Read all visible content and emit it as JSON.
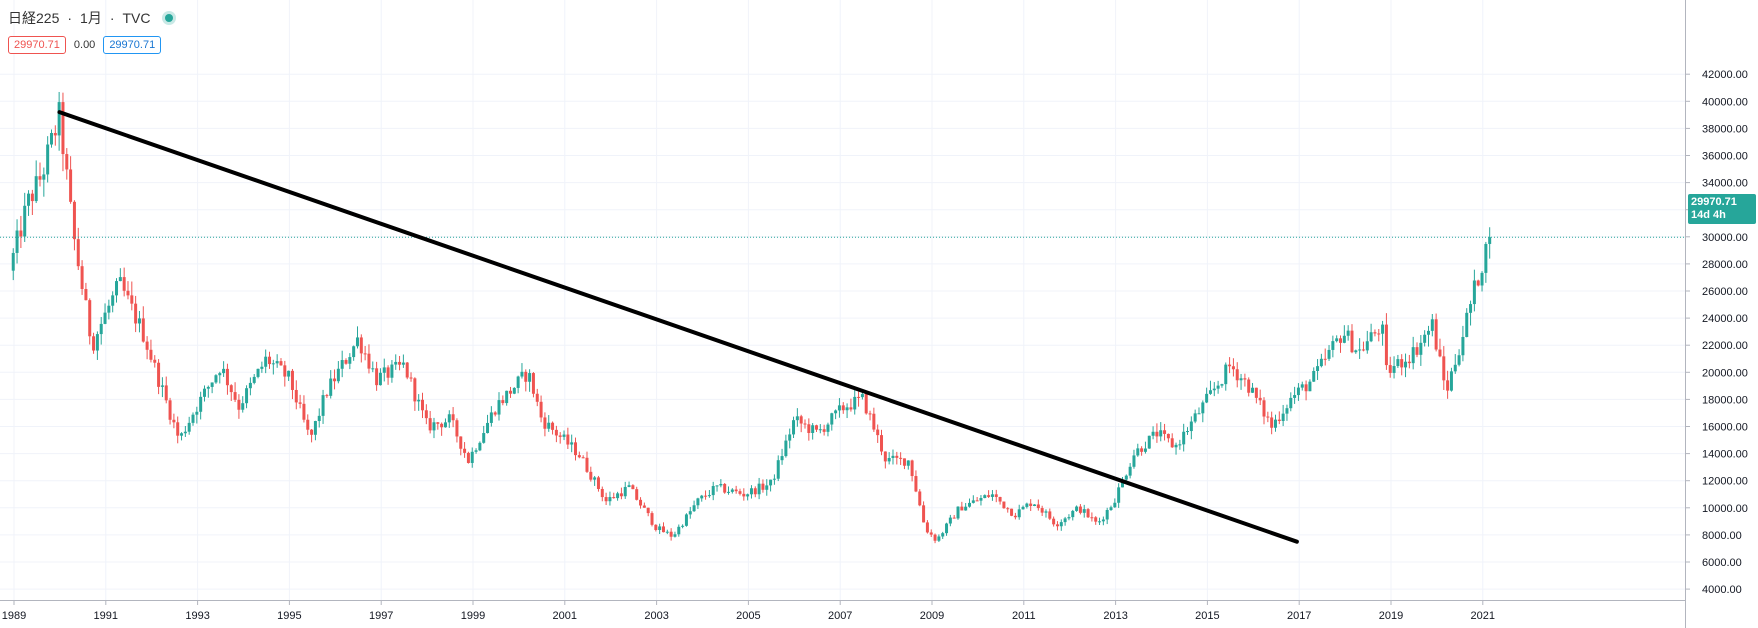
{
  "header": {
    "symbol": "日経225",
    "sep1": "·",
    "interval": "1月",
    "sep2": "·",
    "source": "TVC"
  },
  "ohlc": {
    "left_value": "29970.71",
    "change": "0.00",
    "right_value": "29970.71"
  },
  "price_tag": {
    "price": "29970.71",
    "countdown": "14d 4h"
  },
  "colors": {
    "up": "#26a69a",
    "down": "#ef5350",
    "trendline": "#000000",
    "grid": "#eeeeee"
  },
  "chart_data": {
    "type": "candlestick",
    "ylim": [
      4000,
      42000
    ],
    "y_ticks": [
      "4000.00",
      "6000.00",
      "8000.00",
      "10000.00",
      "12000.00",
      "14000.00",
      "16000.00",
      "18000.00",
      "20000.00",
      "22000.00",
      "24000.00",
      "26000.00",
      "28000.00",
      "30000.00",
      "32000.00",
      "34000.00",
      "36000.00",
      "38000.00",
      "40000.00",
      "42000.00"
    ],
    "x_ticks": [
      "1989",
      "1991",
      "1993",
      "1995",
      "1997",
      "1999",
      "2001",
      "2003",
      "2005",
      "2007",
      "2009",
      "2011",
      "2013",
      "2015",
      "2017",
      "2019",
      "2021"
    ],
    "last_price": 29970.71,
    "series_anchor_closes": [
      [
        1988.9,
        27500
      ],
      [
        1989.3,
        32500
      ],
      [
        1989.6,
        34500
      ],
      [
        1989.99,
        38915
      ],
      [
        1990.3,
        30000
      ],
      [
        1990.7,
        22000
      ],
      [
        1990.95,
        24000
      ],
      [
        1991.3,
        26500
      ],
      [
        1991.8,
        23000
      ],
      [
        1992.6,
        15000
      ],
      [
        1992.9,
        17000
      ],
      [
        1993.5,
        20500
      ],
      [
        1993.9,
        17500
      ],
      [
        1994.5,
        21000
      ],
      [
        1995.0,
        19500
      ],
      [
        1995.45,
        15000
      ],
      [
        1995.8,
        18500
      ],
      [
        1996.5,
        22500
      ],
      [
        1996.9,
        19500
      ],
      [
        1997.5,
        20500
      ],
      [
        1998.0,
        16000
      ],
      [
        1998.5,
        16500
      ],
      [
        1998.9,
        13500
      ],
      [
        1999.5,
        17500
      ],
      [
        2000.2,
        20000
      ],
      [
        2000.5,
        16500
      ],
      [
        2001.3,
        14000
      ],
      [
        2001.9,
        10500
      ],
      [
        2002.4,
        11500
      ],
      [
        2003.0,
        8500
      ],
      [
        2003.35,
        7900
      ],
      [
        2003.9,
        10500
      ],
      [
        2004.3,
        11500
      ],
      [
        2004.9,
        11000
      ],
      [
        2005.5,
        11800
      ],
      [
        2006.0,
        16500
      ],
      [
        2006.5,
        15500
      ],
      [
        2007.1,
        17500
      ],
      [
        2007.5,
        18000
      ],
      [
        2008.0,
        13500
      ],
      [
        2008.5,
        13500
      ],
      [
        2008.85,
        8500
      ],
      [
        2009.1,
        7600
      ],
      [
        2009.6,
        10000
      ],
      [
        2010.3,
        11000
      ],
      [
        2010.8,
        9500
      ],
      [
        2011.2,
        10500
      ],
      [
        2011.7,
        8800
      ],
      [
        2012.2,
        10000
      ],
      [
        2012.6,
        8800
      ],
      [
        2012.95,
        10400
      ],
      [
        2013.4,
        14000
      ],
      [
        2013.9,
        15500
      ],
      [
        2014.3,
        14500
      ],
      [
        2014.9,
        17500
      ],
      [
        2015.5,
        20500
      ],
      [
        2015.9,
        19000
      ],
      [
        2016.4,
        16000
      ],
      [
        2016.8,
        18000
      ],
      [
        2017.3,
        19500
      ],
      [
        2017.95,
        23000
      ],
      [
        2018.3,
        21500
      ],
      [
        2018.8,
        23500
      ],
      [
        2018.9,
        20000
      ],
      [
        2019.5,
        21500
      ],
      [
        2019.9,
        23500
      ],
      [
        2020.2,
        18500
      ],
      [
        2020.5,
        22000
      ],
      [
        2020.85,
        26500
      ],
      [
        2021.15,
        29970
      ]
    ],
    "trendline": {
      "x1": 1989.99,
      "y1": 39200,
      "x2": 2016.95,
      "y2": 7500
    }
  }
}
